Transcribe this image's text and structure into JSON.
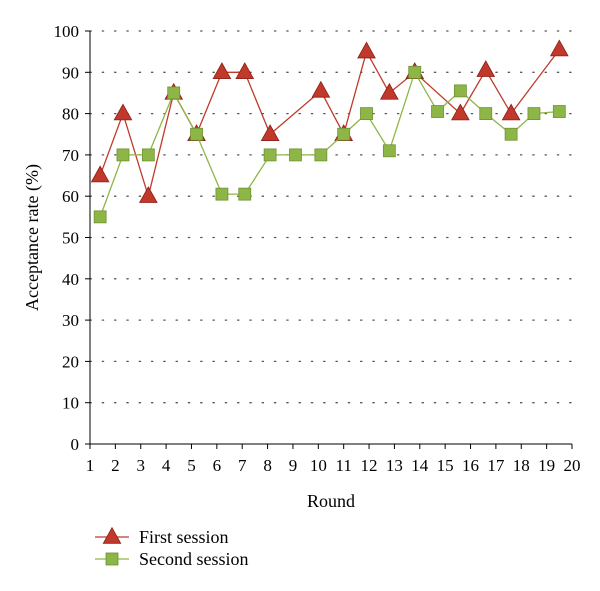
{
  "chart_data": {
    "type": "line",
    "title": "",
    "xlabel": "Round",
    "ylabel": "Acceptance rate (%)",
    "xlim": [
      1,
      20
    ],
    "ylim": [
      0,
      100
    ],
    "x_ticks": [
      "1",
      "2",
      "3",
      "4",
      "5",
      "6",
      "7",
      "8",
      "9",
      "10",
      "11",
      "12",
      "13",
      "14",
      "15",
      "16",
      "17",
      "18",
      "19",
      "20"
    ],
    "y_ticks": [
      "0",
      "10",
      "20",
      "30",
      "40",
      "50",
      "60",
      "70",
      "80",
      "90",
      "100"
    ],
    "grid": "horizontal dotted",
    "legend_position": "bottom-left",
    "series": [
      {
        "name": "First session",
        "marker": "triangle",
        "color": "#c0392b",
        "x": [
          1.4,
          2.3,
          3.3,
          4.3,
          5.2,
          6.2,
          7.1,
          8.1,
          10.1,
          11.0,
          11.9,
          12.8,
          13.8,
          15.6,
          16.6,
          17.6,
          19.5
        ],
        "values": [
          65,
          80,
          60,
          85,
          75,
          90,
          90,
          75,
          85.5,
          75,
          95,
          85,
          90,
          80,
          90.5,
          80,
          95.5
        ]
      },
      {
        "name": "Second session",
        "marker": "square",
        "color": "#8db646",
        "x": [
          1.4,
          2.3,
          3.3,
          4.3,
          5.2,
          6.2,
          7.1,
          8.1,
          9.1,
          10.1,
          11.0,
          11.9,
          12.8,
          13.8,
          14.7,
          15.6,
          16.6,
          17.6,
          18.5,
          19.5
        ],
        "values": [
          55,
          70,
          70,
          85,
          75,
          60.5,
          60.5,
          70,
          70,
          70,
          75,
          80,
          71,
          90,
          80.5,
          85.5,
          80,
          75,
          80,
          80.5
        ]
      }
    ]
  }
}
